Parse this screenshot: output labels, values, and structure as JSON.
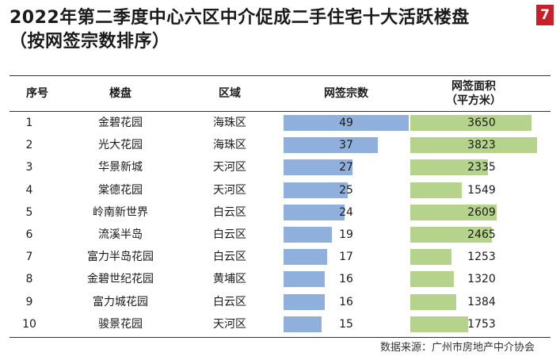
{
  "title": {
    "line1": "2022年第二季度中心六区中介促成二手住宅十大活跃楼盘",
    "line2": "（按网签宗数排序）"
  },
  "badge": "7",
  "headers": {
    "rank": "序号",
    "estate": "楼盘",
    "district": "区域",
    "count": "网签宗数",
    "area_line1": "网签面积",
    "area_line2": "（平方米）"
  },
  "source": "数据来源：广州市房地产中介协会",
  "colors": {
    "count_bar": "#8fb0dd",
    "area_bar": "#b5d38a",
    "badge": "#c8202a"
  },
  "chart_data": {
    "type": "table",
    "columns": [
      "序号",
      "楼盘",
      "区域",
      "网签宗数",
      "网签面积（平方米）"
    ],
    "rows": [
      {
        "rank": "1",
        "estate": "金碧花园",
        "district": "海珠区",
        "count": 49,
        "area": 3650
      },
      {
        "rank": "2",
        "estate": "光大花园",
        "district": "海珠区",
        "count": 37,
        "area": 3823
      },
      {
        "rank": "3",
        "estate": "华景新城",
        "district": "天河区",
        "count": 27,
        "area": 2335
      },
      {
        "rank": "4",
        "estate": "棠德花园",
        "district": "天河区",
        "count": 25,
        "area": 1549
      },
      {
        "rank": "5",
        "estate": "岭南新世界",
        "district": "白云区",
        "count": 24,
        "area": 2609
      },
      {
        "rank": "6",
        "estate": "流溪半岛",
        "district": "白云区",
        "count": 19,
        "area": 2465
      },
      {
        "rank": "7",
        "estate": "富力半岛花园",
        "district": "白云区",
        "count": 17,
        "area": 1253
      },
      {
        "rank": "8",
        "estate": "金碧世纪花园",
        "district": "黄埔区",
        "count": 16,
        "area": 1320
      },
      {
        "rank": "9",
        "estate": "富力城花园",
        "district": "白云区",
        "count": 16,
        "area": 1384
      },
      {
        "rank": "10",
        "estate": "骏景花园",
        "district": "天河区",
        "count": 15,
        "area": 1753
      }
    ]
  }
}
